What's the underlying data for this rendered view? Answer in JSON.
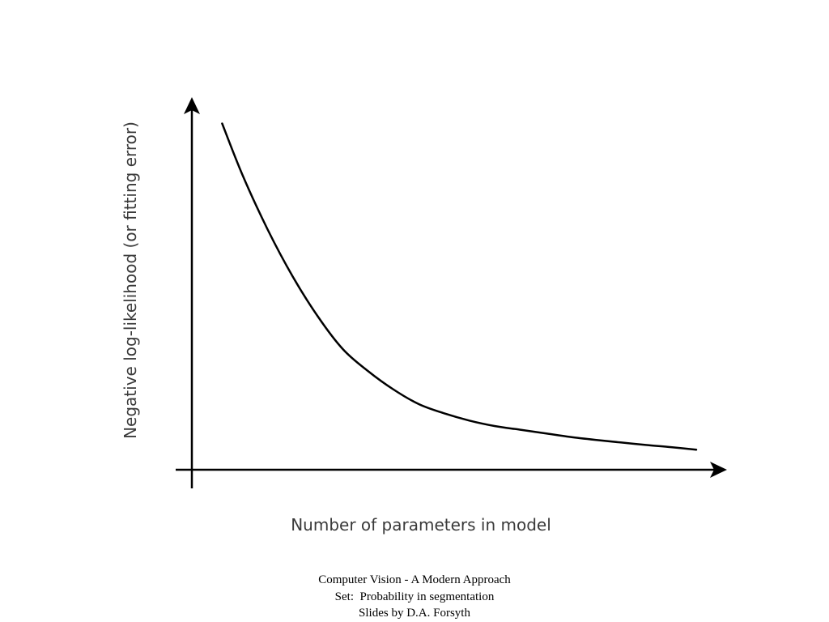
{
  "chart_data": {
    "type": "line",
    "title": "",
    "xlabel": "Number of parameters in model",
    "ylabel": "Negative log-likelihood (or fitting error)",
    "axes_ticks": false,
    "grid": false,
    "series": [
      {
        "values_description": "",
        "x": [
          0.06,
          0.1,
          0.15,
          0.2,
          0.25,
          0.3,
          0.35,
          0.4,
          0.45,
          0.5,
          0.55,
          0.6,
          0.65,
          0.7,
          0.75,
          0.8,
          0.85,
          0.9,
          0.95,
          1.0
        ],
        "y": [
          0.95,
          0.81,
          0.66,
          0.53,
          0.42,
          0.33,
          0.27,
          0.22,
          0.18,
          0.155,
          0.135,
          0.12,
          0.11,
          0.1,
          0.09,
          0.082,
          0.075,
          0.068,
          0.062,
          0.055
        ]
      }
    ],
    "xlim": [
      0,
      1
    ],
    "ylim": [
      0,
      1
    ],
    "colors": {
      "curve": "#000000",
      "axes": "#000000",
      "label": "#3a3a3a"
    }
  },
  "footer": {
    "line1": "Computer Vision - A Modern Approach",
    "line2": "Set:  Probability in segmentation",
    "line3": "Slides by D.A. Forsyth"
  }
}
